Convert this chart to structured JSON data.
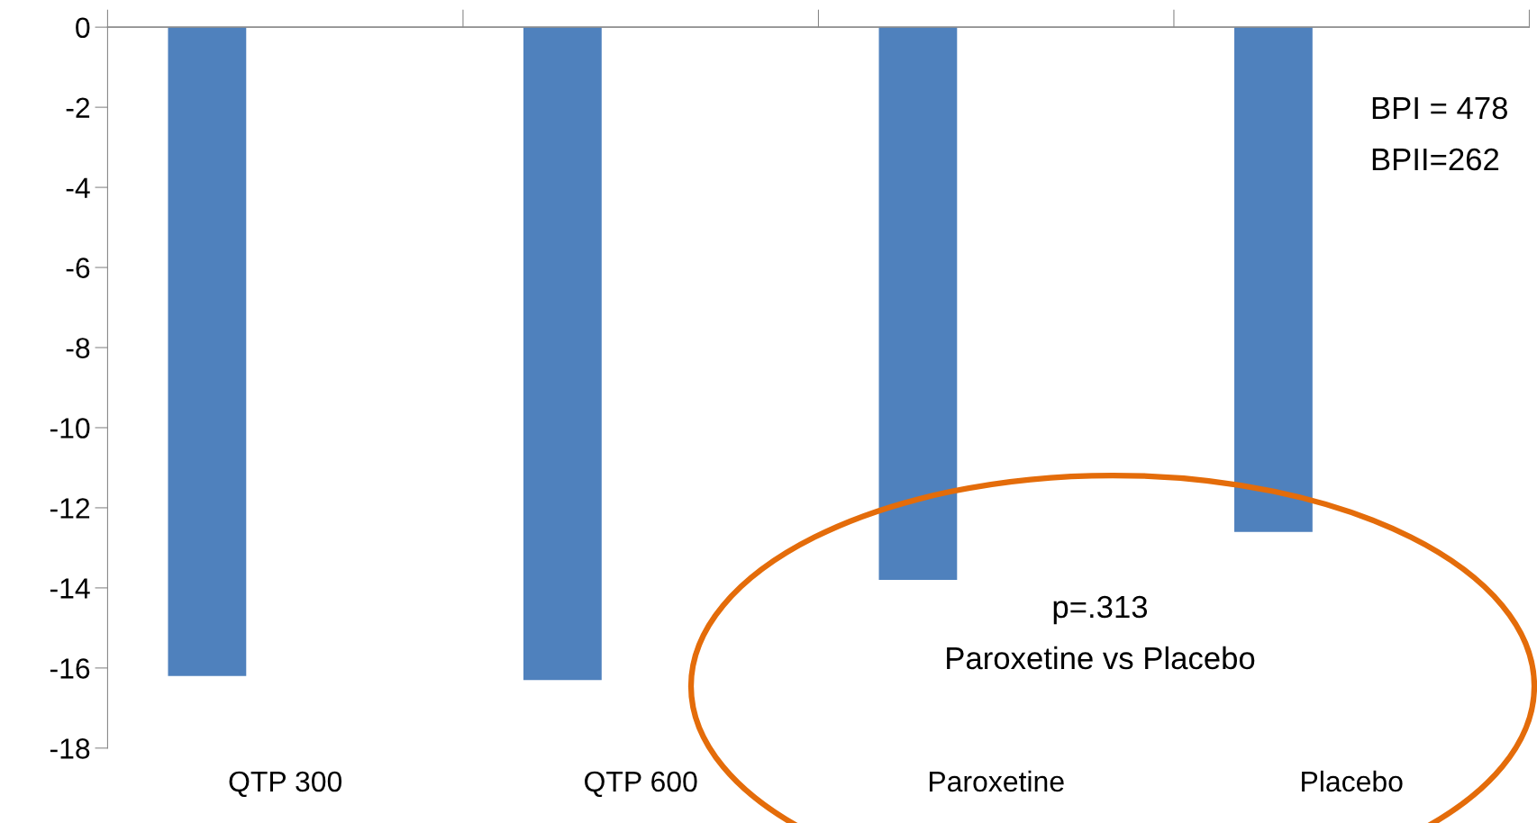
{
  "chart_data": {
    "type": "bar",
    "categories": [
      "QTP 300",
      "QTP 600",
      "Paroxetine",
      "Placebo"
    ],
    "values": [
      -16.2,
      -16.3,
      -13.8,
      -12.6
    ],
    "color": "#4f81bd",
    "ylim": [
      -18,
      0
    ],
    "yticks": [
      -18,
      -16,
      -14,
      -12,
      -10,
      -8,
      -6,
      -4,
      -2,
      0
    ],
    "grid": false,
    "legend": false,
    "annotations": [
      "BPI = 478",
      "BPII=262",
      "p=.313",
      "Paroxetine vs Placebo"
    ]
  }
}
